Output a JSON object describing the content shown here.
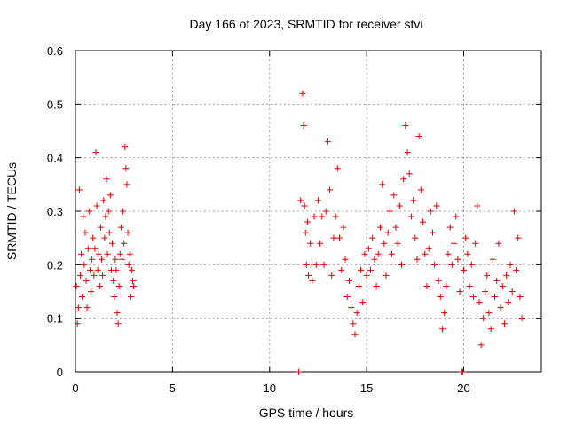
{
  "chart_data": {
    "type": "scatter",
    "title": "Day 166 of 2023, SRMTID for receiver stvi",
    "xlabel": "GPS time / hours",
    "ylabel": "SRMTID / TECUs",
    "xlim": [
      0,
      24
    ],
    "ylim": [
      0,
      0.6
    ],
    "x_ticks": [
      0,
      5,
      10,
      15,
      20
    ],
    "y_ticks": [
      0,
      0.1,
      0.2,
      0.3,
      0.4,
      0.5,
      0.6
    ],
    "x_tick_labels": [
      "0",
      "5",
      "10",
      "15",
      "20"
    ],
    "y_tick_labels": [
      "0",
      "0.1",
      "0.2",
      "0.3",
      "0.4",
      "0.5",
      "0.6"
    ],
    "grid": true,
    "marker": "+",
    "color": "#e00000",
    "series": [
      {
        "name": "SRMTID",
        "points": [
          [
            0.05,
            0.16
          ],
          [
            0.1,
            0.09
          ],
          [
            0.15,
            0.12
          ],
          [
            0.2,
            0.34
          ],
          [
            0.25,
            0.18
          ],
          [
            0.3,
            0.22
          ],
          [
            0.35,
            0.14
          ],
          [
            0.4,
            0.29
          ],
          [
            0.45,
            0.2
          ],
          [
            0.5,
            0.26
          ],
          [
            0.55,
            0.17
          ],
          [
            0.6,
            0.12
          ],
          [
            0.65,
            0.23
          ],
          [
            0.7,
            0.3
          ],
          [
            0.75,
            0.19
          ],
          [
            0.8,
            0.15
          ],
          [
            0.85,
            0.21
          ],
          [
            0.9,
            0.25
          ],
          [
            0.95,
            0.18
          ],
          [
            1.0,
            0.23
          ],
          [
            1.05,
            0.41
          ],
          [
            1.1,
            0.31
          ],
          [
            1.15,
            0.19
          ],
          [
            1.2,
            0.22
          ],
          [
            1.25,
            0.16
          ],
          [
            1.3,
            0.27
          ],
          [
            1.35,
            0.21
          ],
          [
            1.4,
            0.18
          ],
          [
            1.45,
            0.32
          ],
          [
            1.5,
            0.25
          ],
          [
            1.55,
            0.29
          ],
          [
            1.6,
            0.36
          ],
          [
            1.65,
            0.22
          ],
          [
            1.7,
            0.3
          ],
          [
            1.75,
            0.26
          ],
          [
            1.8,
            0.33
          ],
          [
            1.85,
            0.19
          ],
          [
            1.9,
            0.24
          ],
          [
            1.95,
            0.17
          ],
          [
            2.0,
            0.14
          ],
          [
            2.05,
            0.21
          ],
          [
            2.1,
            0.19
          ],
          [
            2.15,
            0.11
          ],
          [
            2.2,
            0.09
          ],
          [
            2.25,
            0.16
          ],
          [
            2.3,
            0.22
          ],
          [
            2.35,
            0.27
          ],
          [
            2.4,
            0.21
          ],
          [
            2.45,
            0.3
          ],
          [
            2.5,
            0.24
          ],
          [
            2.55,
            0.42
          ],
          [
            2.6,
            0.38
          ],
          [
            2.65,
            0.35
          ],
          [
            2.7,
            0.26
          ],
          [
            2.75,
            0.2
          ],
          [
            2.8,
            0.22
          ],
          [
            2.85,
            0.14
          ],
          [
            2.9,
            0.19
          ],
          [
            2.95,
            0.17
          ],
          [
            3.0,
            0.16
          ],
          [
            11.5,
            0.0
          ],
          [
            11.6,
            0.32
          ],
          [
            11.7,
            0.52
          ],
          [
            11.75,
            0.46
          ],
          [
            11.8,
            0.31
          ],
          [
            11.85,
            0.26
          ],
          [
            11.9,
            0.2
          ],
          [
            11.95,
            0.28
          ],
          [
            12.0,
            0.18
          ],
          [
            12.1,
            0.24
          ],
          [
            12.2,
            0.17
          ],
          [
            12.3,
            0.29
          ],
          [
            12.4,
            0.2
          ],
          [
            12.5,
            0.32
          ],
          [
            12.6,
            0.24
          ],
          [
            12.7,
            0.29
          ],
          [
            12.8,
            0.2
          ],
          [
            12.9,
            0.3
          ],
          [
            13.0,
            0.43
          ],
          [
            13.1,
            0.34
          ],
          [
            13.2,
            0.18
          ],
          [
            13.3,
            0.25
          ],
          [
            13.4,
            0.29
          ],
          [
            13.5,
            0.38
          ],
          [
            13.6,
            0.25
          ],
          [
            13.7,
            0.19
          ],
          [
            13.8,
            0.27
          ],
          [
            13.9,
            0.21
          ],
          [
            14.0,
            0.14
          ],
          [
            14.1,
            0.17
          ],
          [
            14.2,
            0.12
          ],
          [
            14.3,
            0.09
          ],
          [
            14.4,
            0.07
          ],
          [
            14.5,
            0.11
          ],
          [
            14.6,
            0.16
          ],
          [
            14.7,
            0.19
          ],
          [
            14.8,
            0.13
          ],
          [
            14.9,
            0.22
          ],
          [
            15.0,
            0.18
          ],
          [
            15.1,
            0.23
          ],
          [
            15.2,
            0.19
          ],
          [
            15.3,
            0.25
          ],
          [
            15.4,
            0.21
          ],
          [
            15.5,
            0.16
          ],
          [
            15.6,
            0.22
          ],
          [
            15.7,
            0.27
          ],
          [
            15.8,
            0.35
          ],
          [
            15.9,
            0.24
          ],
          [
            16.0,
            0.18
          ],
          [
            16.1,
            0.26
          ],
          [
            16.2,
            0.3
          ],
          [
            16.3,
            0.22
          ],
          [
            16.4,
            0.33
          ],
          [
            16.5,
            0.27
          ],
          [
            16.6,
            0.24
          ],
          [
            16.7,
            0.31
          ],
          [
            16.8,
            0.2
          ],
          [
            16.9,
            0.36
          ],
          [
            17.0,
            0.46
          ],
          [
            17.1,
            0.41
          ],
          [
            17.2,
            0.37
          ],
          [
            17.3,
            0.29
          ],
          [
            17.4,
            0.32
          ],
          [
            17.5,
            0.25
          ],
          [
            17.6,
            0.21
          ],
          [
            17.7,
            0.44
          ],
          [
            17.8,
            0.34
          ],
          [
            17.9,
            0.28
          ],
          [
            18.0,
            0.22
          ],
          [
            18.1,
            0.16
          ],
          [
            18.2,
            0.23
          ],
          [
            18.3,
            0.3
          ],
          [
            18.4,
            0.26
          ],
          [
            18.5,
            0.2
          ],
          [
            18.6,
            0.31
          ],
          [
            18.7,
            0.17
          ],
          [
            18.8,
            0.14
          ],
          [
            18.9,
            0.08
          ],
          [
            19.0,
            0.11
          ],
          [
            19.1,
            0.16
          ],
          [
            19.2,
            0.22
          ],
          [
            19.3,
            0.27
          ],
          [
            19.4,
            0.2
          ],
          [
            19.5,
            0.24
          ],
          [
            19.6,
            0.29
          ],
          [
            19.7,
            0.21
          ],
          [
            19.8,
            0.15
          ],
          [
            19.9,
            0.0
          ],
          [
            19.95,
            0.0
          ],
          [
            20.0,
            0.19
          ],
          [
            20.1,
            0.25
          ],
          [
            20.2,
            0.22
          ],
          [
            20.3,
            0.16
          ],
          [
            20.4,
            0.2
          ],
          [
            20.5,
            0.14
          ],
          [
            20.6,
            0.24
          ],
          [
            20.7,
            0.31
          ],
          [
            20.8,
            0.13
          ],
          [
            20.9,
            0.05
          ],
          [
            21.0,
            0.1
          ],
          [
            21.1,
            0.15
          ],
          [
            21.2,
            0.18
          ],
          [
            21.3,
            0.11
          ],
          [
            21.4,
            0.08
          ],
          [
            21.5,
            0.21
          ],
          [
            21.6,
            0.14
          ],
          [
            21.7,
            0.17
          ],
          [
            21.8,
            0.24
          ],
          [
            21.9,
            0.12
          ],
          [
            22.0,
            0.16
          ],
          [
            22.1,
            0.09
          ],
          [
            22.2,
            0.18
          ],
          [
            22.3,
            0.13
          ],
          [
            22.4,
            0.2
          ],
          [
            22.5,
            0.15
          ],
          [
            22.6,
            0.3
          ],
          [
            22.7,
            0.19
          ],
          [
            22.8,
            0.25
          ],
          [
            22.9,
            0.14
          ],
          [
            23.0,
            0.1
          ]
        ]
      }
    ]
  }
}
